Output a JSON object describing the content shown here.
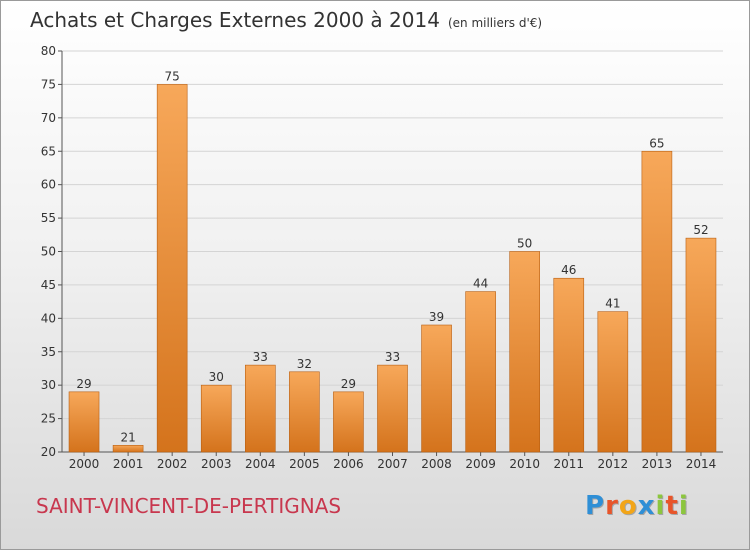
{
  "header": {
    "title": "Achats et Charges Externes 2000 à 2014",
    "subtitle": "(en milliers d'€)"
  },
  "footer": {
    "town": "SAINT-VINCENT-DE-PERTIGNAS",
    "logo_text": "Proxiti",
    "logo_letters": [
      {
        "char": "P",
        "color": "#2f8fd6"
      },
      {
        "char": "r",
        "color": "#e8552a"
      },
      {
        "char": "o",
        "color": "#f2a518"
      },
      {
        "char": "x",
        "color": "#2f8fd6"
      },
      {
        "char": "i",
        "color": "#8cc63e"
      },
      {
        "char": "t",
        "color": "#e8552a"
      },
      {
        "char": "i",
        "color": "#8cc63e"
      }
    ]
  },
  "chart_data": {
    "type": "bar",
    "title": "Achats et Charges Externes 2000 à 2014",
    "subtitle": "(en milliers d'€)",
    "categories": [
      "2000",
      "2001",
      "2002",
      "2003",
      "2004",
      "2005",
      "2006",
      "2007",
      "2008",
      "2009",
      "2010",
      "2011",
      "2012",
      "2013",
      "2014"
    ],
    "values": [
      29,
      21,
      75,
      30,
      33,
      32,
      29,
      33,
      39,
      44,
      50,
      46,
      41,
      65,
      52
    ],
    "ylim": [
      20,
      80
    ],
    "yticks": [
      20,
      25,
      30,
      35,
      40,
      45,
      50,
      55,
      60,
      65,
      70,
      75,
      80
    ],
    "grid": true,
    "bar_color_top": "#f7a85a",
    "bar_color_bottom": "#d4731c",
    "bar_edge_color": "#b85f12"
  }
}
